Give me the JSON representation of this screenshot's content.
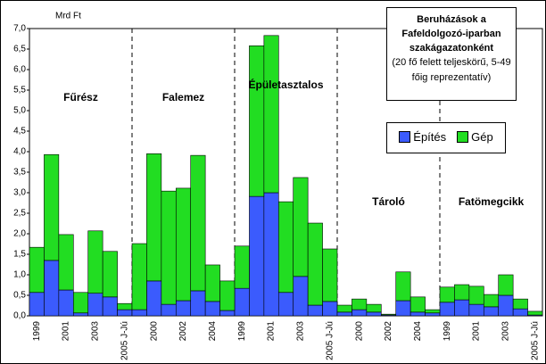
{
  "chart_data": {
    "type": "stacked_bar",
    "title": "Beruházások a Fafeldolgozó-iparban szakágazatonként",
    "subtitle": "(20 fő felett teljeskörű, 5-49 főig reprezentatív)",
    "y_label": "Mrd Ft",
    "groups": [
      "Fűrész",
      "Falemez",
      "Épületasztalos",
      "Tároló",
      "Fatömegcikk"
    ],
    "categories": [
      "1999",
      null,
      "2001",
      null,
      "2003",
      null,
      "2005 J-Jú",
      null,
      "2000",
      null,
      "2002",
      null,
      "2004",
      null,
      "1999",
      null,
      "2001",
      null,
      "2003",
      null,
      "2005 J-Jú",
      null,
      "2000",
      null,
      "2002",
      null,
      "2004",
      null,
      "1999",
      null,
      "2001",
      null,
      "2003",
      null,
      "2005 J-Jú"
    ],
    "series": [
      {
        "name": "Építés",
        "color": "#3b5bfd",
        "values": [
          0.57,
          1.35,
          0.63,
          0.07,
          0.55,
          0.46,
          0.15,
          0.15,
          0.85,
          0.28,
          0.37,
          0.61,
          0.35,
          0.13,
          0.67,
          2.91,
          3.0,
          0.57,
          0.96,
          0.26,
          0.35,
          0.09,
          0.15,
          0.09,
          0.02,
          0.37,
          0.09,
          0.07,
          0.33,
          0.39,
          0.28,
          0.22,
          0.5,
          0.17,
          0.02
        ]
      },
      {
        "name": "Gép",
        "color": "#22dd22",
        "values": [
          1.1,
          2.58,
          1.35,
          0.5,
          1.52,
          1.11,
          0.15,
          1.61,
          3.1,
          2.76,
          2.74,
          3.3,
          0.89,
          0.72,
          1.03,
          3.67,
          3.83,
          2.21,
          2.41,
          2.0,
          1.28,
          0.17,
          0.26,
          0.19,
          0.02,
          0.7,
          0.37,
          0.08,
          0.37,
          0.37,
          0.44,
          0.3,
          0.5,
          0.24,
          0.09
        ]
      }
    ],
    "ylim": [
      0,
      7
    ],
    "yticks": [
      {
        "value": 0,
        "label": "0,0"
      },
      {
        "value": 0.5,
        "label": "0,5"
      },
      {
        "value": 1,
        "label": "1,0"
      },
      {
        "value": 1.5,
        "label": "1,5"
      },
      {
        "value": 2,
        "label": "2,0"
      },
      {
        "value": 2.5,
        "label": "2,5"
      },
      {
        "value": 3,
        "label": "3,0"
      },
      {
        "value": 3.5,
        "label": "3,5"
      },
      {
        "value": 4,
        "label": "4,0"
      },
      {
        "value": 4.5,
        "label": "4,5"
      },
      {
        "value": 5,
        "label": "5,0"
      },
      {
        "value": 5.5,
        "label": "5,5"
      },
      {
        "value": 6,
        "label": "6,0"
      },
      {
        "value": 6.5,
        "label": "6,5"
      },
      {
        "value": 7,
        "label": "7,0"
      }
    ],
    "grid": false,
    "legend": "upper right"
  }
}
